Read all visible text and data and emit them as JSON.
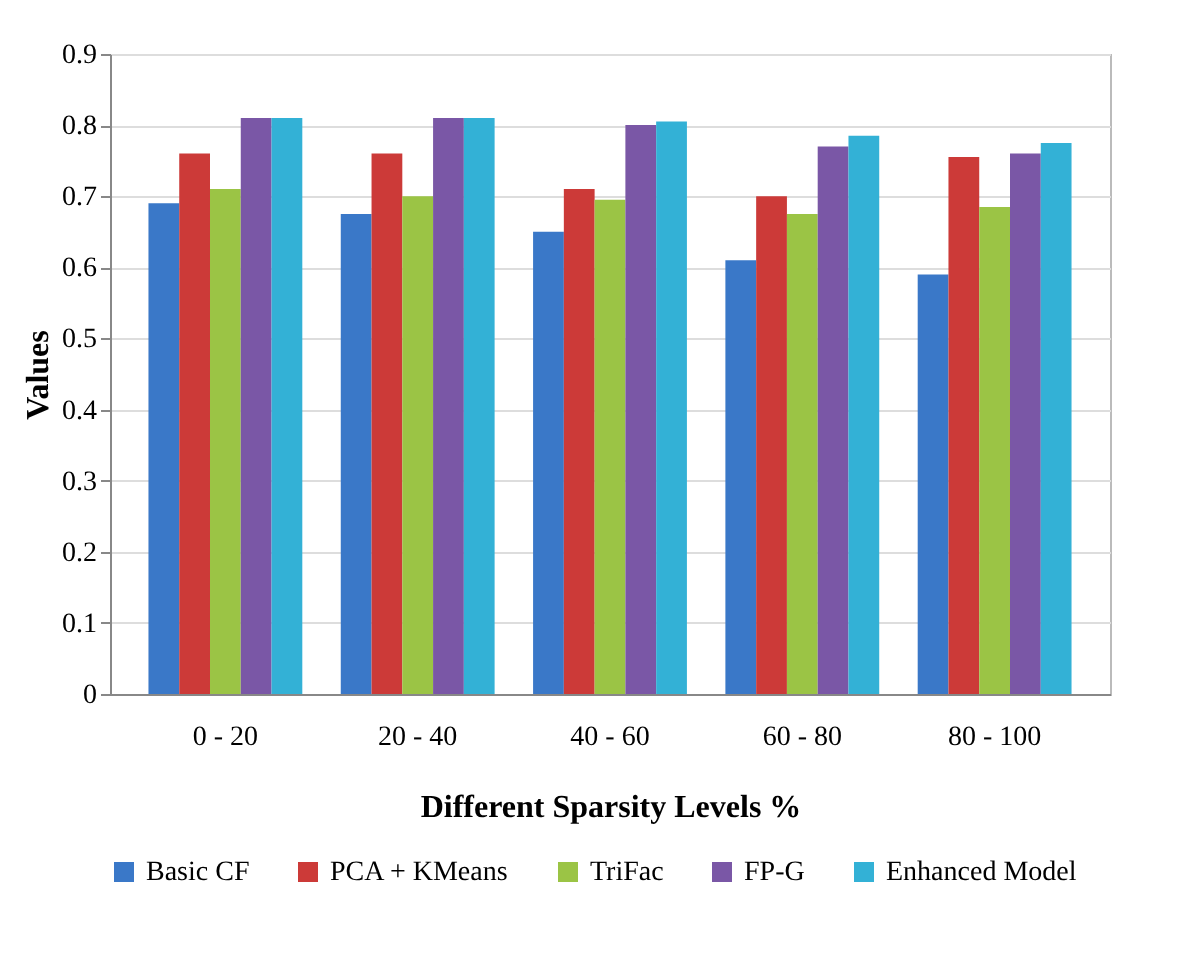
{
  "chart_data": {
    "type": "bar",
    "xlabel": "Different Sparsity Levels %",
    "ylabel": "Values",
    "categories": [
      "0 - 20",
      "20 - 40",
      "40 - 60",
      "60 - 80",
      "80 - 100"
    ],
    "series": [
      {
        "name": "Basic CF",
        "color": "#3a78c8",
        "values": [
          0.69,
          0.675,
          0.65,
          0.61,
          0.59
        ]
      },
      {
        "name": "PCA + KMeans",
        "color": "#cc3a38",
        "values": [
          0.76,
          0.76,
          0.71,
          0.7,
          0.755
        ]
      },
      {
        "name": "TriFac",
        "color": "#9bc445",
        "values": [
          0.71,
          0.7,
          0.695,
          0.675,
          0.685
        ]
      },
      {
        "name": "FP-G",
        "color": "#7a57a6",
        "values": [
          0.81,
          0.81,
          0.8,
          0.77,
          0.76
        ]
      },
      {
        "name": "Enhanced Model",
        "color": "#33b1d6",
        "values": [
          0.81,
          0.81,
          0.805,
          0.785,
          0.775
        ]
      }
    ],
    "ylim": [
      0,
      0.9
    ],
    "yticks": [
      0,
      0.1,
      0.2,
      0.3,
      0.4,
      0.5,
      0.6,
      0.7,
      0.8,
      0.9
    ],
    "grid": "y",
    "legend": "bottom"
  }
}
